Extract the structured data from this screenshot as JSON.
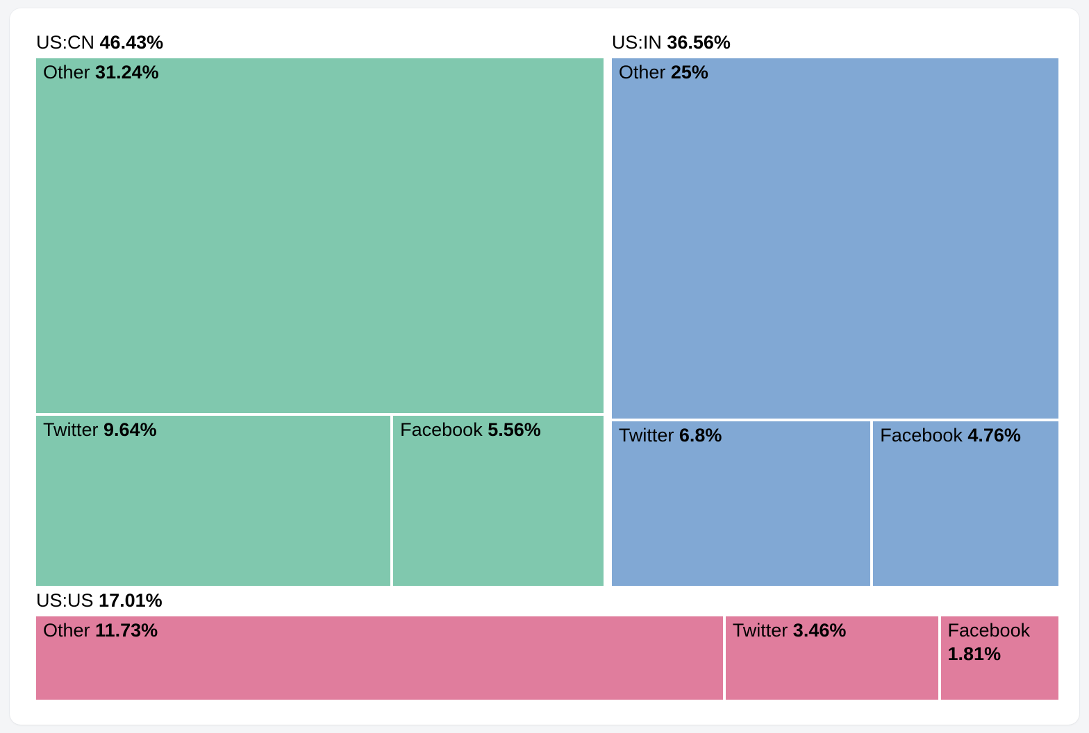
{
  "page": {
    "background_color": "#f4f5f7",
    "card_background_color": "#ffffff"
  },
  "chart_data": {
    "type": "treemap",
    "value_unit": "%",
    "layout_hint": "two groups on top row sized by value, third group full-width bottom strip; each group split into Other (large slice) plus Twitter/Facebook sub-row",
    "groups": [
      {
        "label": "US:CN",
        "value": 46.43,
        "value_label": "46.43%",
        "color": "#80c8ae",
        "children": [
          {
            "label": "Other",
            "value": 31.24,
            "value_label": "31.24%"
          },
          {
            "label": "Twitter",
            "value": 9.64,
            "value_label": "9.64%"
          },
          {
            "label": "Facebook",
            "value": 5.56,
            "value_label": "5.56%"
          }
        ]
      },
      {
        "label": "US:IN",
        "value": 36.56,
        "value_label": "36.56%",
        "color": "#81a8d4",
        "children": [
          {
            "label": "Other",
            "value": 25,
            "value_label": "25%"
          },
          {
            "label": "Twitter",
            "value": 6.8,
            "value_label": "6.8%"
          },
          {
            "label": "Facebook",
            "value": 4.76,
            "value_label": "4.76%"
          }
        ]
      },
      {
        "label": "US:US",
        "value": 17.01,
        "value_label": "17.01%",
        "color": "#e07d9d",
        "children": [
          {
            "label": "Other",
            "value": 11.73,
            "value_label": "11.73%"
          },
          {
            "label": "Twitter",
            "value": 3.46,
            "value_label": "3.46%"
          },
          {
            "label": "Facebook",
            "value": 1.81,
            "value_label": "1.81%"
          }
        ]
      }
    ]
  }
}
